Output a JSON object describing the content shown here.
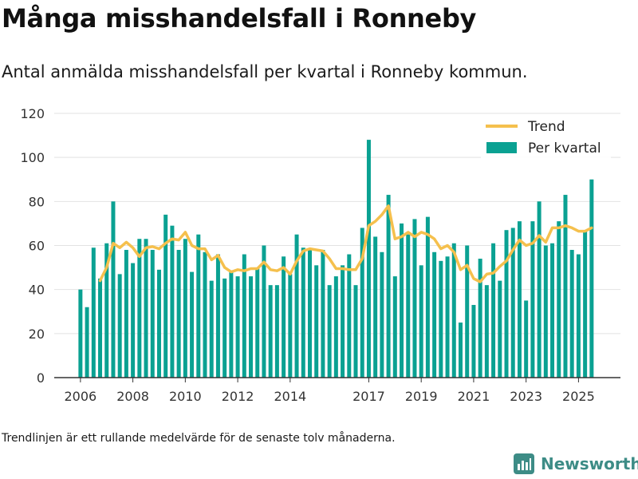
{
  "header": {
    "title": "Många misshandelsfall i Ronneby",
    "subtitle": "Antal anmälda misshandelsfall per kvartal i Ronneby kommun."
  },
  "footer": {
    "note": "Trendlinjen är ett rullande medelvärde för de senaste tolv månaderna.",
    "brand": "Newsworthy",
    "brand_icon": "newsworthy-logo-icon"
  },
  "colors": {
    "bar": "#0aa192",
    "trend": "#f5c04d",
    "grid": "#e2e2e2",
    "axis": "#333333",
    "brand": "#3d8c86"
  },
  "chart_data": {
    "type": "bar",
    "title": "Många misshandelsfall i Ronneby",
    "xlabel": "",
    "ylabel": "",
    "ylim": [
      0,
      120
    ],
    "yticks": [
      0,
      20,
      40,
      60,
      80,
      100,
      120
    ],
    "grid": true,
    "legend_position": "top-right",
    "x_domain": [
      2005.0,
      2026.6
    ],
    "xticks": [
      {
        "label": "2006",
        "value": 2006
      },
      {
        "label": "2008",
        "value": 2008
      },
      {
        "label": "2010",
        "value": 2010
      },
      {
        "label": "2012",
        "value": 2012
      },
      {
        "label": "2014",
        "value": 2014
      },
      {
        "label": "2017",
        "value": 2017
      },
      {
        "label": "2019",
        "value": 2019
      },
      {
        "label": "2021",
        "value": 2021
      },
      {
        "label": "2023",
        "value": 2023
      },
      {
        "label": "2025",
        "value": 2025
      }
    ],
    "series": [
      {
        "name": "Per kvartal",
        "type": "bar",
        "x": [
          2006.0,
          2006.25,
          2006.5,
          2006.75,
          2007.0,
          2007.25,
          2007.5,
          2007.75,
          2008.0,
          2008.25,
          2008.5,
          2008.75,
          2009.0,
          2009.25,
          2009.5,
          2009.75,
          2010.0,
          2010.25,
          2010.5,
          2010.75,
          2011.0,
          2011.25,
          2011.5,
          2011.75,
          2012.0,
          2012.25,
          2012.5,
          2012.75,
          2013.0,
          2013.25,
          2013.5,
          2013.75,
          2014.0,
          2014.25,
          2014.5,
          2014.75,
          2015.0,
          2015.25,
          2015.5,
          2015.75,
          2016.0,
          2016.25,
          2016.5,
          2016.75,
          2017.0,
          2017.25,
          2017.5,
          2017.75,
          2018.0,
          2018.25,
          2018.5,
          2018.75,
          2019.0,
          2019.25,
          2019.5,
          2019.75,
          2020.0,
          2020.25,
          2020.5,
          2020.75,
          2021.0,
          2021.25,
          2021.5,
          2021.75,
          2022.0,
          2022.25,
          2022.5,
          2022.75,
          2023.0,
          2023.25,
          2023.5,
          2023.75,
          2024.0,
          2024.25,
          2024.5,
          2024.75,
          2025.0,
          2025.25,
          2025.5
        ],
        "values": [
          40,
          32,
          59,
          45,
          61,
          80,
          47,
          58,
          52,
          63,
          63,
          58,
          49,
          74,
          69,
          58,
          63,
          48,
          65,
          57,
          44,
          56,
          45,
          48,
          46,
          56,
          46,
          50,
          60,
          42,
          42,
          55,
          47,
          65,
          59,
          58,
          51,
          58,
          42,
          46,
          51,
          56,
          42,
          68,
          108,
          64,
          57,
          83,
          46,
          70,
          65,
          72,
          51,
          73,
          57,
          53,
          55,
          61,
          25,
          60,
          33,
          54,
          42,
          61,
          44,
          67,
          68,
          71,
          35,
          71,
          80,
          60,
          61,
          71,
          83,
          58,
          56,
          67,
          90
        ]
      },
      {
        "name": "Trend",
        "type": "line",
        "x": [
          2006.75,
          2007.0,
          2007.25,
          2007.5,
          2007.75,
          2008.0,
          2008.25,
          2008.5,
          2008.75,
          2009.0,
          2009.25,
          2009.5,
          2009.75,
          2010.0,
          2010.25,
          2010.5,
          2010.75,
          2011.0,
          2011.25,
          2011.5,
          2011.75,
          2012.0,
          2012.25,
          2012.5,
          2012.75,
          2013.0,
          2013.25,
          2013.5,
          2013.75,
          2014.0,
          2014.25,
          2014.5,
          2014.75,
          2015.0,
          2015.25,
          2015.5,
          2015.75,
          2016.0,
          2016.25,
          2016.5,
          2016.75,
          2017.0,
          2017.25,
          2017.5,
          2017.75,
          2018.0,
          2018.25,
          2018.5,
          2018.75,
          2019.0,
          2019.25,
          2019.5,
          2019.75,
          2020.0,
          2020.25,
          2020.5,
          2020.75,
          2021.0,
          2021.25,
          2021.5,
          2021.75,
          2022.0,
          2022.25,
          2022.5,
          2022.75,
          2023.0,
          2023.25,
          2023.5,
          2023.75,
          2024.0,
          2024.25,
          2024.5,
          2024.75,
          2025.0,
          2025.25,
          2025.5
        ],
        "values": [
          44,
          50,
          61,
          59,
          61.5,
          59,
          55,
          59,
          59.5,
          58.5,
          61,
          63,
          62.5,
          66,
          60,
          58.5,
          58.5,
          53.5,
          55.5,
          50,
          48,
          49,
          48.5,
          49.5,
          49.5,
          52.5,
          49,
          48.5,
          50,
          47,
          53,
          57.5,
          58.5,
          58,
          57.5,
          54,
          49.5,
          49.5,
          49,
          49,
          54,
          69,
          71,
          74,
          78,
          63,
          64,
          66,
          64,
          66,
          65,
          63,
          58.5,
          60,
          57,
          49,
          51,
          45,
          43.5,
          47,
          47.5,
          50.5,
          53,
          58,
          62.5,
          60,
          61,
          64.5,
          61.5,
          68,
          68,
          69,
          68,
          66.5,
          66.5,
          68
        ]
      }
    ]
  }
}
